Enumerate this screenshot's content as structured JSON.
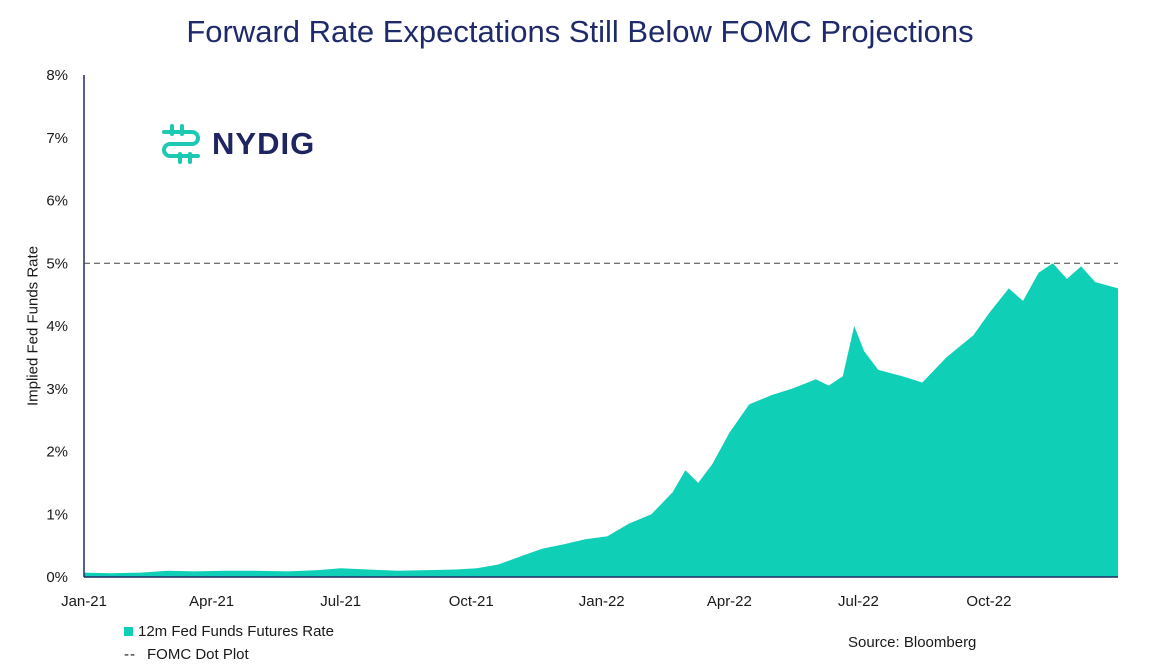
{
  "header": {
    "title": "Forward Rate Expectations Still Below FOMC Projections"
  },
  "logo": {
    "text": "NYDIG"
  },
  "source": "Source: Bloomberg",
  "legend": {
    "area_label": "12m Fed Funds Futures Rate",
    "dash_glyph": "--",
    "line_label": "FOMC Dot Plot"
  },
  "colors": {
    "area": "#0FCFB7",
    "axis": "#1F2A6B",
    "title": "#1F2A6B",
    "logo_mark": "#1CC9B3",
    "logo_text": "#1E2561"
  },
  "chart_data": {
    "type": "area",
    "title": "Forward Rate Expectations Still Below FOMC Projections",
    "xlabel": "",
    "ylabel": "Implied Fed Funds Rate",
    "ylim": [
      0,
      8
    ],
    "x_range": [
      "2021-01-01",
      "2022-12-31"
    ],
    "y_ticks": [
      "0%",
      "1%",
      "2%",
      "3%",
      "4%",
      "5%",
      "6%",
      "7%",
      "8%"
    ],
    "x_ticks": [
      "Jan-21",
      "Apr-21",
      "Jul-21",
      "Oct-21",
      "Jan-22",
      "Apr-22",
      "Jul-22",
      "Oct-22"
    ],
    "reference_line": {
      "name": "FOMC Dot Plot",
      "value": 5.0,
      "style": "dashed"
    },
    "series": [
      {
        "name": "12m Fed Funds Futures Rate",
        "points": [
          [
            "2021-01-01",
            0.07
          ],
          [
            "2021-01-20",
            0.06
          ],
          [
            "2021-02-10",
            0.07
          ],
          [
            "2021-03-01",
            0.1
          ],
          [
            "2021-03-20",
            0.09
          ],
          [
            "2021-04-10",
            0.1
          ],
          [
            "2021-05-01",
            0.1
          ],
          [
            "2021-05-25",
            0.09
          ],
          [
            "2021-06-15",
            0.11
          ],
          [
            "2021-07-01",
            0.14
          ],
          [
            "2021-07-20",
            0.12
          ],
          [
            "2021-08-10",
            0.1
          ],
          [
            "2021-09-01",
            0.11
          ],
          [
            "2021-09-20",
            0.12
          ],
          [
            "2021-10-05",
            0.14
          ],
          [
            "2021-10-20",
            0.2
          ],
          [
            "2021-11-05",
            0.33
          ],
          [
            "2021-11-20",
            0.45
          ],
          [
            "2021-12-05",
            0.52
          ],
          [
            "2021-12-20",
            0.6
          ],
          [
            "2022-01-05",
            0.65
          ],
          [
            "2022-01-20",
            0.85
          ],
          [
            "2022-02-05",
            1.0
          ],
          [
            "2022-02-20",
            1.35
          ],
          [
            "2022-03-01",
            1.7
          ],
          [
            "2022-03-10",
            1.5
          ],
          [
            "2022-03-20",
            1.8
          ],
          [
            "2022-04-01",
            2.3
          ],
          [
            "2022-04-15",
            2.75
          ],
          [
            "2022-05-01",
            2.9
          ],
          [
            "2022-05-15",
            3.0
          ],
          [
            "2022-06-01",
            3.15
          ],
          [
            "2022-06-10",
            3.05
          ],
          [
            "2022-06-20",
            3.2
          ],
          [
            "2022-06-28",
            4.0
          ],
          [
            "2022-07-05",
            3.6
          ],
          [
            "2022-07-15",
            3.3
          ],
          [
            "2022-08-01",
            3.2
          ],
          [
            "2022-08-15",
            3.1
          ],
          [
            "2022-09-01",
            3.5
          ],
          [
            "2022-09-20",
            3.85
          ],
          [
            "2022-10-01",
            4.2
          ],
          [
            "2022-10-15",
            4.6
          ],
          [
            "2022-10-25",
            4.4
          ],
          [
            "2022-11-05",
            4.85
          ],
          [
            "2022-11-15",
            5.0
          ],
          [
            "2022-11-25",
            4.75
          ],
          [
            "2022-12-05",
            4.95
          ],
          [
            "2022-12-15",
            4.7
          ],
          [
            "2022-12-31",
            4.6
          ]
        ]
      }
    ]
  }
}
